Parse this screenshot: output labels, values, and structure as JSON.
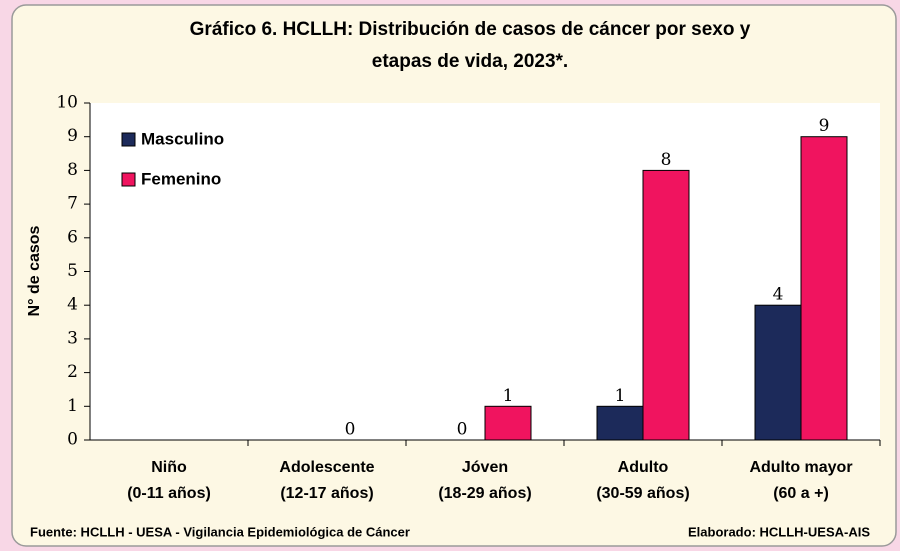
{
  "chart_data": {
    "type": "bar",
    "title": [
      "Gráfico 6. HCLLH: Distribución de casos de cáncer por sexo y",
      "etapas de vida, 2023*."
    ],
    "y_label": "N° de casos",
    "categories": [
      [
        "Niño",
        "(0-11 años)"
      ],
      [
        "Adolescente",
        "(12-17 años)"
      ],
      [
        "Jóven",
        "(18-29 años)"
      ],
      [
        "Adulto",
        "(30-59 años)"
      ],
      [
        "Adulto mayor",
        "(60 a +)"
      ]
    ],
    "series": [
      {
        "name": "Masculino",
        "color": "#1c2a5a",
        "values": [
          null,
          null,
          0,
          1,
          4
        ]
      },
      {
        "name": "Femenino",
        "color": "#f0145f",
        "values": [
          null,
          0,
          1,
          8,
          9
        ]
      }
    ],
    "ylim": [
      0,
      10
    ],
    "yticks": [
      0,
      1,
      2,
      3,
      4,
      5,
      6,
      7,
      8,
      9,
      10
    ],
    "legend": "top-left",
    "source": "Fuente: HCLLH - UESA - Vigilancia Epidemiológica de Cáncer",
    "credit": "Elaborado: HCLLH-UESA-AIS"
  }
}
